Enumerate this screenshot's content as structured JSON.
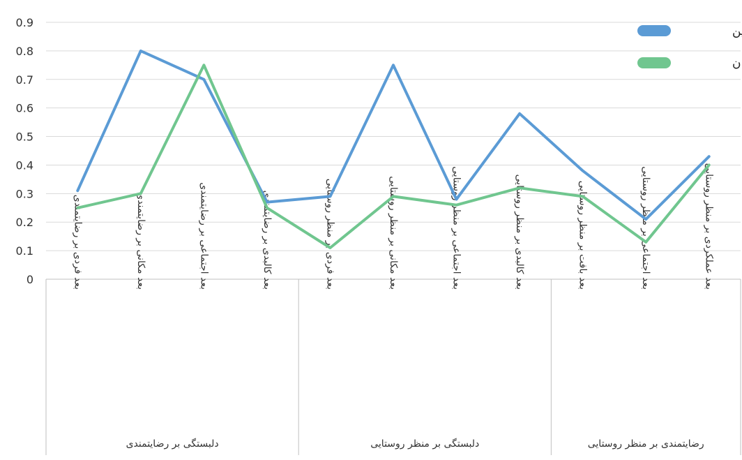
{
  "chart_data": {
    "type": "line",
    "title": "",
    "xlabel": "",
    "ylabel": "",
    "ylim": [
      0,
      0.9
    ],
    "yticks": [
      "0",
      "0.1",
      "0.2",
      "0.3",
      "0.4",
      "0.5",
      "0.6",
      "0.7",
      "0.8",
      "0.9"
    ],
    "grid": true,
    "legend_position": "top-right",
    "categories": [
      "بعد فردی بر رضایتمندی",
      "بعد مکانی بر رضایتمندی",
      "بعد اجتماعی بر رضایتمندی",
      "بعد کالبدی بر رضایتمندی",
      "بعد فردی بر منظر روستایی",
      "بعد مکانی بر منظر روستایی",
      "بعد اجتماعی بر منظر روستایی",
      "بعد کالبدی بر منظر روستایی",
      "بعد بافت بر منظر روستایی",
      "بعد اجتماعی بر منظر روستایی",
      "بعد عملکردی بر منظر روستایی"
    ],
    "groups": [
      {
        "label": "دلبستگی بر رضایتمندی",
        "count": 4
      },
      {
        "label": "دلبستگی بر منظر روستایی",
        "count": 4
      },
      {
        "label": "رضایتمندی بر منظر روستایی",
        "count": 3
      }
    ],
    "series": [
      {
        "name": "ساکنین",
        "color": "#5b9bd5",
        "values": [
          0.31,
          0.8,
          0.7,
          0.27,
          0.29,
          0.75,
          0.28,
          0.58,
          0.38,
          0.21,
          0.43
        ]
      },
      {
        "name": "گردشگران",
        "color": "#70c68f",
        "values": [
          0.25,
          0.3,
          0.75,
          0.25,
          0.11,
          0.29,
          0.26,
          0.32,
          0.29,
          0.13,
          0.4
        ]
      }
    ]
  }
}
